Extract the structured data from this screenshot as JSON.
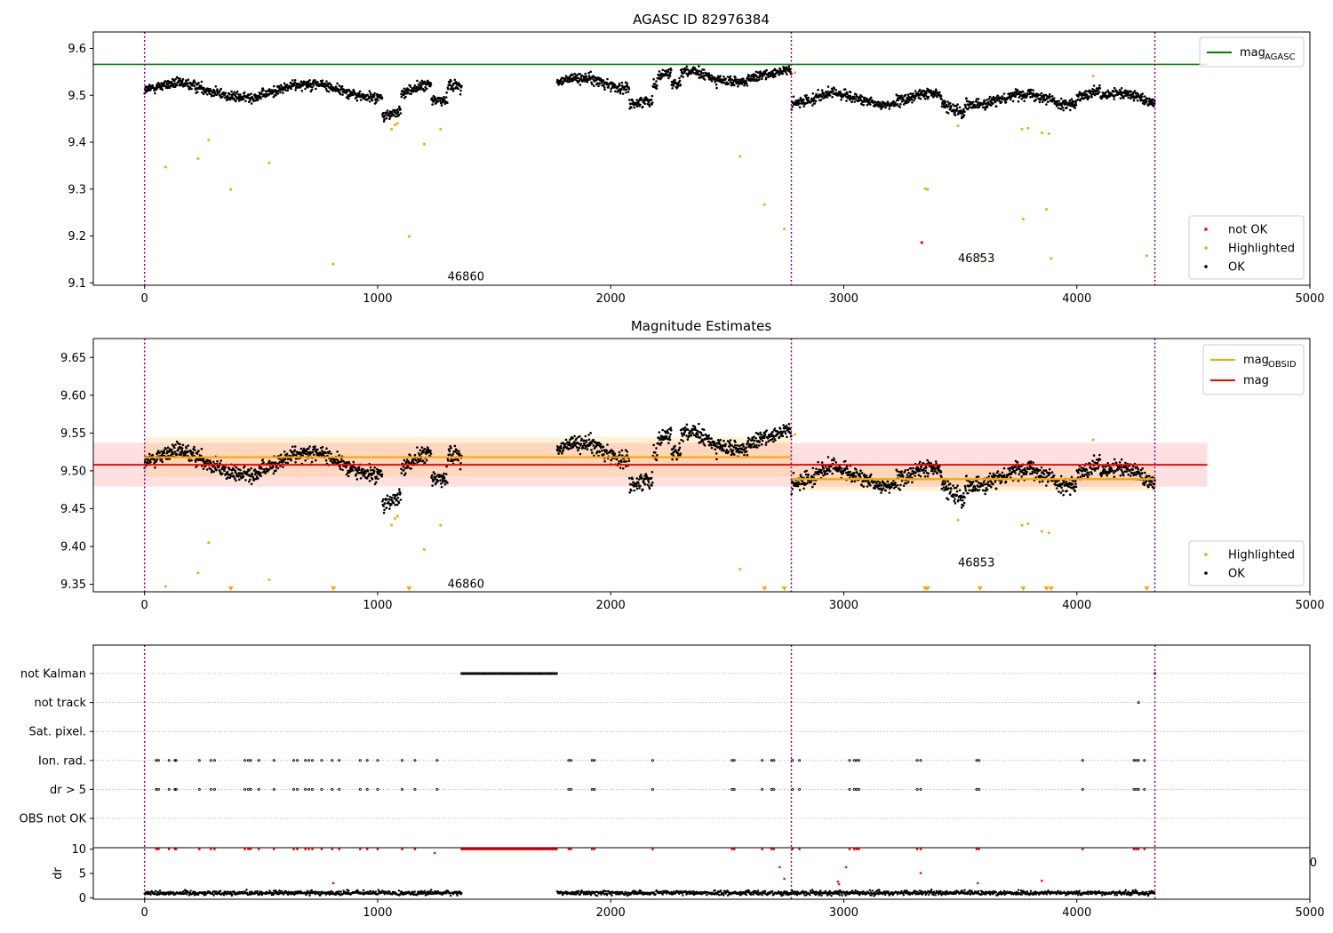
{
  "chart_data": [
    {
      "type": "scatter",
      "title": "AGASC ID 82976384",
      "xlabel": "",
      "ylabel": "",
      "xlim": [
        -220,
        5000
      ],
      "ylim": [
        9.095,
        9.635
      ],
      "xticks": [
        0,
        1000,
        2000,
        3000,
        4000,
        5000
      ],
      "xtick_labels": [
        "0",
        "1000",
        "2000",
        "3000",
        "4000",
        "5000"
      ],
      "yticks": [
        9.1,
        9.2,
        9.3,
        9.4,
        9.5,
        9.6
      ],
      "ytick_labels": [
        "9.1",
        "9.2",
        "9.3",
        "9.4",
        "9.5",
        "9.6"
      ],
      "vlines": [
        0,
        2775,
        4335
      ],
      "obsid_labels": [
        {
          "text": "46860",
          "x": 1300,
          "y": 9.113
        },
        {
          "text": "46853",
          "x": 3490,
          "y": 9.152
        }
      ],
      "reference_lines": [
        {
          "name": "mag",
          "subscript": "AGASC",
          "y": 9.566,
          "x": [
            -220,
            4560
          ],
          "color": "#008000"
        }
      ],
      "lines_legend": [
        {
          "label": "mag",
          "subscript": "AGASC",
          "color": "#008000"
        }
      ],
      "legend_placement_lines": "top-right",
      "points_legend": [
        {
          "label": "not OK",
          "color": "#ff0000"
        },
        {
          "label": "Highlighted",
          "color": "#ffa500"
        },
        {
          "label": "OK",
          "color": "#000000"
        }
      ],
      "legend_placement_points": "bottom-right",
      "series": [
        {
          "name": "OK",
          "color": "#000000",
          "note": "dense time series, generated from segment trend",
          "segments": [
            [
              0,
              1360
            ],
            [
              1770,
              2775
            ],
            [
              2775,
              4335
            ]
          ]
        },
        {
          "name": "Highlighted",
          "color": "#ffa500",
          "x": [
            90,
            230,
            275,
            370,
            535,
            810,
            1060,
            1075,
            1085,
            1135,
            1200,
            1270,
            2555,
            2660,
            2745,
            2790,
            3350,
            3360,
            3490,
            3585,
            3765,
            3770,
            3790,
            3850,
            3870,
            3880,
            3890,
            4070,
            4300
          ],
          "y": [
            9.347,
            9.365,
            9.405,
            9.299,
            9.356,
            9.14,
            9.428,
            9.437,
            9.44,
            9.199,
            9.396,
            9.428,
            9.37,
            9.267,
            9.215,
            9.548,
            9.301,
            9.299,
            9.435,
            9.157,
            9.428,
            9.236,
            9.43,
            9.42,
            9.257,
            9.418,
            9.152,
            9.541,
            9.158
          ]
        },
        {
          "name": "not OK",
          "color": "#ff0000",
          "x": [
            3335
          ],
          "y": [
            9.186
          ]
        }
      ],
      "grid": false
    },
    {
      "type": "scatter",
      "title": "Magnitude Estimates",
      "xlabel": "",
      "ylabel": "",
      "xlim": [
        -220,
        5000
      ],
      "ylim": [
        9.34,
        9.675
      ],
      "xticks": [
        0,
        1000,
        2000,
        3000,
        4000,
        5000
      ],
      "xtick_labels": [
        "0",
        "1000",
        "2000",
        "3000",
        "4000",
        "5000"
      ],
      "yticks": [
        9.35,
        9.4,
        9.45,
        9.5,
        9.55,
        9.6,
        9.65
      ],
      "ytick_labels": [
        "9.35",
        "9.40",
        "9.45",
        "9.50",
        "9.55",
        "9.60",
        "9.65"
      ],
      "vlines": [
        0,
        2775,
        4335
      ],
      "obsid_labels": [
        {
          "text": "46860",
          "x": 1300,
          "y": 9.35
        },
        {
          "text": "46853",
          "x": 3490,
          "y": 9.378
        }
      ],
      "reference_lines": [
        {
          "name": "mag",
          "subscript": "OBSID",
          "y": 9.518,
          "x": [
            0,
            2775
          ],
          "band": [
            9.492,
            9.545
          ],
          "color": "#ffa500"
        },
        {
          "name": "mag",
          "subscript": "OBSID",
          "y": 9.489,
          "x": [
            2775,
            4335
          ],
          "band": [
            9.473,
            9.505
          ],
          "color": "#ffa500"
        },
        {
          "name": "mag",
          "y": 9.508,
          "x": [
            -220,
            4560
          ],
          "band": [
            9.479,
            9.537
          ],
          "color": "#ff0000"
        }
      ],
      "lines_legend": [
        {
          "label": "mag",
          "subscript": "OBSID",
          "color": "#ffa500"
        },
        {
          "label": "mag",
          "color": "#ff0000"
        }
      ],
      "legend_placement_lines": "top-right",
      "points_legend": [
        {
          "label": "Highlighted",
          "color": "#ffa500"
        },
        {
          "label": "OK",
          "color": "#000000"
        }
      ],
      "legend_placement_points": "bottom-right",
      "series": [
        {
          "name": "OK",
          "color": "#000000",
          "note": "same samples as upper panel"
        },
        {
          "name": "Highlighted",
          "color": "#ffa500",
          "x": [
            90,
            230,
            275,
            535,
            1060,
            1075,
            1085,
            1200,
            1270,
            2555,
            2790,
            3490,
            3765,
            3790,
            3850,
            3880,
            4070
          ],
          "y": [
            9.347,
            9.365,
            9.405,
            9.356,
            9.428,
            9.437,
            9.44,
            9.396,
            9.428,
            9.37,
            9.548,
            9.435,
            9.428,
            9.43,
            9.42,
            9.418,
            9.541
          ]
        },
        {
          "name": "Highlighted (clipped)",
          "marker": "triangle-down",
          "color": "#ffa500",
          "x": [
            370,
            810,
            1135,
            2660,
            2745,
            3350,
            3360,
            3585,
            3770,
            3870,
            3890,
            4300
          ]
        }
      ],
      "grid": false
    },
    {
      "type": "scatter",
      "title": "",
      "xlim": [
        -220,
        5000
      ],
      "flag_rows": [
        "not Kalman",
        "not track",
        "Sat. pixel.",
        "Ion. rad.",
        "dr > 5",
        "OBS not OK"
      ],
      "vlines": [
        0,
        2775,
        4335
      ],
      "flags": {
        "not Kalman": {
          "ranges": [
            [
              1360,
              1770
            ]
          ],
          "points": [
            4335
          ]
        },
        "not track": {
          "points": [
            4265
          ]
        },
        "Sat. pixel.": {
          "points": []
        },
        "Ion. rad.": {
          "points": [
            50,
            60,
            105,
            130,
            135,
            235,
            285,
            300,
            430,
            445,
            455,
            490,
            555,
            640,
            655,
            690,
            705,
            720,
            760,
            805,
            835,
            925,
            955,
            1000,
            1105,
            1160,
            1255,
            1820,
            1830,
            1920,
            1930,
            2180,
            2520,
            2530,
            2650,
            2690,
            2700,
            2780,
            2810,
            3025,
            3045,
            3055,
            3065,
            3315,
            3330,
            3570,
            3580,
            4025,
            4245,
            4255,
            4265,
            4290
          ]
        },
        "dr > 5": {
          "points": [
            50,
            60,
            105,
            130,
            135,
            235,
            285,
            300,
            430,
            445,
            455,
            490,
            555,
            640,
            655,
            690,
            705,
            720,
            760,
            805,
            835,
            925,
            955,
            1000,
            1105,
            1160,
            1255,
            1820,
            1830,
            1920,
            1930,
            2180,
            2520,
            2530,
            2650,
            2690,
            2700,
            2780,
            2810,
            3025,
            3045,
            3055,
            3065,
            3315,
            3330,
            3570,
            3580,
            4025,
            4245,
            4255,
            4265,
            4290
          ]
        },
        "OBS not OK": {
          "points": []
        }
      }
    },
    {
      "type": "scatter",
      "title": "",
      "ylabel": "dr",
      "xlim": [
        -220,
        5000
      ],
      "ylim": [
        -0.3,
        10.3
      ],
      "xticks": [
        0,
        1000,
        2000,
        3000,
        4000,
        5000
      ],
      "xtick_labels": [
        "0",
        "1000",
        "2000",
        "3000",
        "4000",
        "5000"
      ],
      "yticks": [
        0,
        5,
        10
      ],
      "ytick_labels": [
        "0",
        "5",
        "10"
      ],
      "stray_label": "0",
      "series": [
        {
          "name": "dr",
          "color": "#000000",
          "note": "baseline ~1 for tracked samples in [0,1360],[1770,4335]"
        },
        {
          "name": "dr (flagged)",
          "color": "#ff0000",
          "capped_value": 10,
          "clip_x": [
            50,
            60,
            105,
            130,
            135,
            235,
            285,
            300,
            430,
            445,
            455,
            490,
            555,
            640,
            655,
            690,
            705,
            720,
            760,
            805,
            835,
            925,
            955,
            1000,
            1105,
            1160,
            1820,
            1830,
            1920,
            1930,
            2180,
            2520,
            2530,
            2650,
            2690,
            2700,
            2780,
            2810,
            3025,
            3045,
            3055,
            3065,
            3315,
            3330,
            3570,
            3580,
            4025,
            4245,
            4255,
            4265,
            4290
          ],
          "x": [
            1245,
            810,
            2725,
            2745,
            2975,
            2980,
            3010,
            3330,
            3575,
            3850
          ],
          "y": [
            9.2,
            3.0,
            6.3,
            3.9,
            3.3,
            2.8,
            6.3,
            5.1,
            3.0,
            3.5
          ]
        }
      ]
    }
  ]
}
